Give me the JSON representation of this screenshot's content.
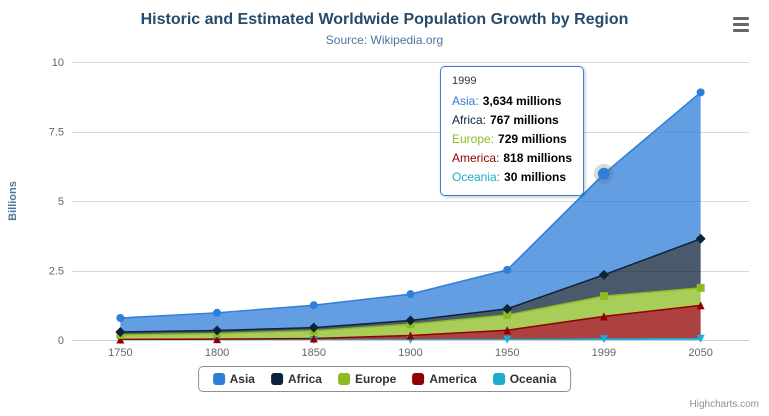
{
  "chart_data": {
    "type": "area",
    "stacking": "normal",
    "title": "Historic and Estimated Worldwide Population Growth by Region",
    "subtitle": "Source: Wikipedia.org",
    "ylabel": "Billions",
    "xlabel": "",
    "ylim": [
      0,
      10
    ],
    "yticks": [
      0,
      2.5,
      5,
      7.5,
      10
    ],
    "categories": [
      "1750",
      "1800",
      "1850",
      "1900",
      "1950",
      "1999",
      "2050"
    ],
    "values_unit": "millions",
    "grid": true,
    "legend_position": "bottom",
    "series": [
      {
        "name": "Asia",
        "color": "#2f7ed8",
        "marker": "circle",
        "values": [
          502,
          635,
          809,
          947,
          1402,
          3634,
          5268
        ]
      },
      {
        "name": "Africa",
        "color": "#0d233a",
        "marker": "diamond",
        "values": [
          106,
          107,
          111,
          133,
          221,
          767,
          1766
        ]
      },
      {
        "name": "Europe",
        "color": "#8bbc21",
        "marker": "square",
        "values": [
          163,
          203,
          276,
          408,
          547,
          729,
          628
        ]
      },
      {
        "name": "America",
        "color": "#910000",
        "marker": "triangle",
        "values": [
          18,
          31,
          54,
          156,
          339,
          818,
          1201
        ]
      },
      {
        "name": "Oceania",
        "color": "#1aadce",
        "marker": "triangle-down",
        "values": [
          2,
          2,
          2,
          6,
          13,
          30,
          46
        ]
      }
    ],
    "hover": {
      "series": "Asia",
      "category": "1999"
    }
  },
  "tooltip": {
    "header": "1999",
    "border_color": "#2f7ed8",
    "rows": [
      {
        "label": "Asia:",
        "value": "3,634 millions",
        "color": "#2f7ed8"
      },
      {
        "label": "Africa:",
        "value": "767 millions",
        "color": "#0d233a"
      },
      {
        "label": "Europe:",
        "value": "729 millions",
        "color": "#8bbc21"
      },
      {
        "label": "America:",
        "value": "818 millions",
        "color": "#910000"
      },
      {
        "label": "Oceania:",
        "value": "30 millions",
        "color": "#1aadce"
      }
    ]
  },
  "credits": {
    "label": "Highcharts.com"
  },
  "colors": {
    "title": "#274b6d",
    "subtitle": "#4d759e",
    "axis_label": "#666666",
    "gridline": "#d8d8d8",
    "axis_line": "#c0d0e0"
  }
}
